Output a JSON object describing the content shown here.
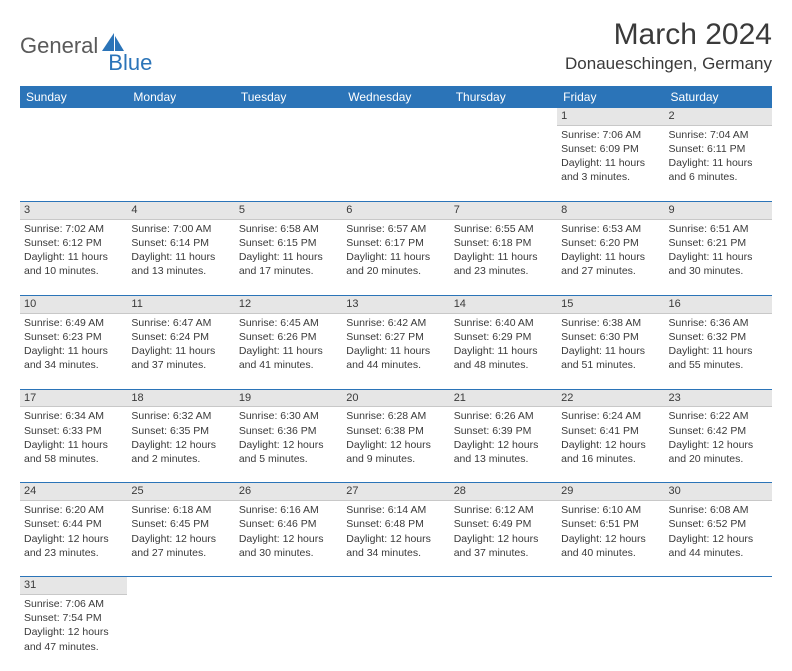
{
  "logo": {
    "part1": "General",
    "part2": "Blue",
    "shape_color": "#2b74b8"
  },
  "title": "March 2024",
  "location": "Donaueschingen, Germany",
  "colors": {
    "header_bg": "#2b74b8",
    "header_text": "#ffffff",
    "daynum_bg": "#e6e6e6",
    "row_border": "#2b74b8",
    "text": "#3a3a3a"
  },
  "weekdays": [
    "Sunday",
    "Monday",
    "Tuesday",
    "Wednesday",
    "Thursday",
    "Friday",
    "Saturday"
  ],
  "weeks": [
    [
      null,
      null,
      null,
      null,
      null,
      {
        "n": "1",
        "sr": "Sunrise: 7:06 AM",
        "ss": "Sunset: 6:09 PM",
        "dl1": "Daylight: 11 hours",
        "dl2": "and 3 minutes."
      },
      {
        "n": "2",
        "sr": "Sunrise: 7:04 AM",
        "ss": "Sunset: 6:11 PM",
        "dl1": "Daylight: 11 hours",
        "dl2": "and 6 minutes."
      }
    ],
    [
      {
        "n": "3",
        "sr": "Sunrise: 7:02 AM",
        "ss": "Sunset: 6:12 PM",
        "dl1": "Daylight: 11 hours",
        "dl2": "and 10 minutes."
      },
      {
        "n": "4",
        "sr": "Sunrise: 7:00 AM",
        "ss": "Sunset: 6:14 PM",
        "dl1": "Daylight: 11 hours",
        "dl2": "and 13 minutes."
      },
      {
        "n": "5",
        "sr": "Sunrise: 6:58 AM",
        "ss": "Sunset: 6:15 PM",
        "dl1": "Daylight: 11 hours",
        "dl2": "and 17 minutes."
      },
      {
        "n": "6",
        "sr": "Sunrise: 6:57 AM",
        "ss": "Sunset: 6:17 PM",
        "dl1": "Daylight: 11 hours",
        "dl2": "and 20 minutes."
      },
      {
        "n": "7",
        "sr": "Sunrise: 6:55 AM",
        "ss": "Sunset: 6:18 PM",
        "dl1": "Daylight: 11 hours",
        "dl2": "and 23 minutes."
      },
      {
        "n": "8",
        "sr": "Sunrise: 6:53 AM",
        "ss": "Sunset: 6:20 PM",
        "dl1": "Daylight: 11 hours",
        "dl2": "and 27 minutes."
      },
      {
        "n": "9",
        "sr": "Sunrise: 6:51 AM",
        "ss": "Sunset: 6:21 PM",
        "dl1": "Daylight: 11 hours",
        "dl2": "and 30 minutes."
      }
    ],
    [
      {
        "n": "10",
        "sr": "Sunrise: 6:49 AM",
        "ss": "Sunset: 6:23 PM",
        "dl1": "Daylight: 11 hours",
        "dl2": "and 34 minutes."
      },
      {
        "n": "11",
        "sr": "Sunrise: 6:47 AM",
        "ss": "Sunset: 6:24 PM",
        "dl1": "Daylight: 11 hours",
        "dl2": "and 37 minutes."
      },
      {
        "n": "12",
        "sr": "Sunrise: 6:45 AM",
        "ss": "Sunset: 6:26 PM",
        "dl1": "Daylight: 11 hours",
        "dl2": "and 41 minutes."
      },
      {
        "n": "13",
        "sr": "Sunrise: 6:42 AM",
        "ss": "Sunset: 6:27 PM",
        "dl1": "Daylight: 11 hours",
        "dl2": "and 44 minutes."
      },
      {
        "n": "14",
        "sr": "Sunrise: 6:40 AM",
        "ss": "Sunset: 6:29 PM",
        "dl1": "Daylight: 11 hours",
        "dl2": "and 48 minutes."
      },
      {
        "n": "15",
        "sr": "Sunrise: 6:38 AM",
        "ss": "Sunset: 6:30 PM",
        "dl1": "Daylight: 11 hours",
        "dl2": "and 51 minutes."
      },
      {
        "n": "16",
        "sr": "Sunrise: 6:36 AM",
        "ss": "Sunset: 6:32 PM",
        "dl1": "Daylight: 11 hours",
        "dl2": "and 55 minutes."
      }
    ],
    [
      {
        "n": "17",
        "sr": "Sunrise: 6:34 AM",
        "ss": "Sunset: 6:33 PM",
        "dl1": "Daylight: 11 hours",
        "dl2": "and 58 minutes."
      },
      {
        "n": "18",
        "sr": "Sunrise: 6:32 AM",
        "ss": "Sunset: 6:35 PM",
        "dl1": "Daylight: 12 hours",
        "dl2": "and 2 minutes."
      },
      {
        "n": "19",
        "sr": "Sunrise: 6:30 AM",
        "ss": "Sunset: 6:36 PM",
        "dl1": "Daylight: 12 hours",
        "dl2": "and 5 minutes."
      },
      {
        "n": "20",
        "sr": "Sunrise: 6:28 AM",
        "ss": "Sunset: 6:38 PM",
        "dl1": "Daylight: 12 hours",
        "dl2": "and 9 minutes."
      },
      {
        "n": "21",
        "sr": "Sunrise: 6:26 AM",
        "ss": "Sunset: 6:39 PM",
        "dl1": "Daylight: 12 hours",
        "dl2": "and 13 minutes."
      },
      {
        "n": "22",
        "sr": "Sunrise: 6:24 AM",
        "ss": "Sunset: 6:41 PM",
        "dl1": "Daylight: 12 hours",
        "dl2": "and 16 minutes."
      },
      {
        "n": "23",
        "sr": "Sunrise: 6:22 AM",
        "ss": "Sunset: 6:42 PM",
        "dl1": "Daylight: 12 hours",
        "dl2": "and 20 minutes."
      }
    ],
    [
      {
        "n": "24",
        "sr": "Sunrise: 6:20 AM",
        "ss": "Sunset: 6:44 PM",
        "dl1": "Daylight: 12 hours",
        "dl2": "and 23 minutes."
      },
      {
        "n": "25",
        "sr": "Sunrise: 6:18 AM",
        "ss": "Sunset: 6:45 PM",
        "dl1": "Daylight: 12 hours",
        "dl2": "and 27 minutes."
      },
      {
        "n": "26",
        "sr": "Sunrise: 6:16 AM",
        "ss": "Sunset: 6:46 PM",
        "dl1": "Daylight: 12 hours",
        "dl2": "and 30 minutes."
      },
      {
        "n": "27",
        "sr": "Sunrise: 6:14 AM",
        "ss": "Sunset: 6:48 PM",
        "dl1": "Daylight: 12 hours",
        "dl2": "and 34 minutes."
      },
      {
        "n": "28",
        "sr": "Sunrise: 6:12 AM",
        "ss": "Sunset: 6:49 PM",
        "dl1": "Daylight: 12 hours",
        "dl2": "and 37 minutes."
      },
      {
        "n": "29",
        "sr": "Sunrise: 6:10 AM",
        "ss": "Sunset: 6:51 PM",
        "dl1": "Daylight: 12 hours",
        "dl2": "and 40 minutes."
      },
      {
        "n": "30",
        "sr": "Sunrise: 6:08 AM",
        "ss": "Sunset: 6:52 PM",
        "dl1": "Daylight: 12 hours",
        "dl2": "and 44 minutes."
      }
    ],
    [
      {
        "n": "31",
        "sr": "Sunrise: 7:06 AM",
        "ss": "Sunset: 7:54 PM",
        "dl1": "Daylight: 12 hours",
        "dl2": "and 47 minutes."
      },
      null,
      null,
      null,
      null,
      null,
      null
    ]
  ]
}
